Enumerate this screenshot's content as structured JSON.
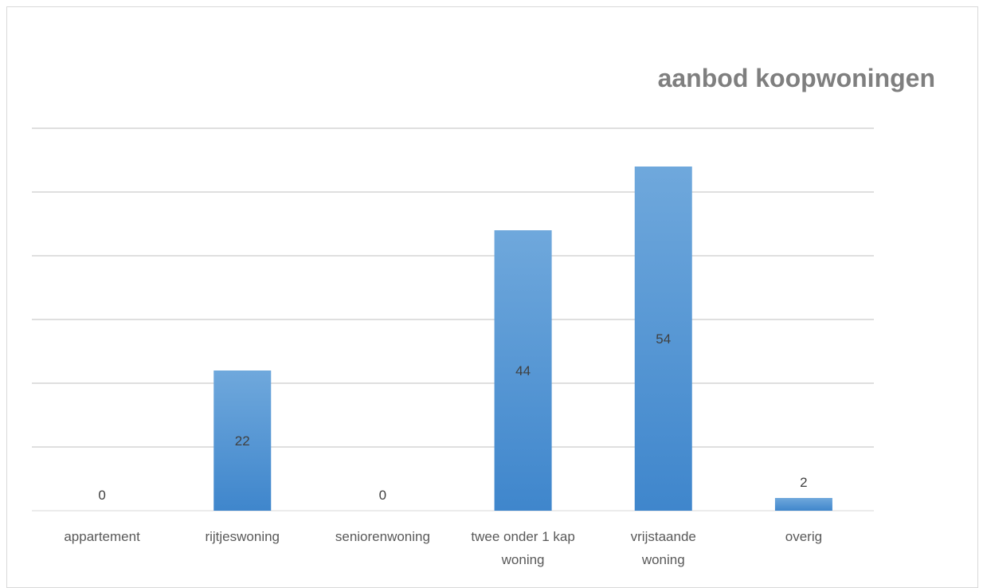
{
  "chart_data": {
    "type": "bar",
    "title": "aanbod koopwoningen",
    "categories": [
      [
        "appartement"
      ],
      [
        "rijtjeswoning"
      ],
      [
        "seniorenwoning"
      ],
      [
        "twee onder 1 kap",
        "woning"
      ],
      [
        "vrijstaande",
        "woning"
      ],
      [
        "overig"
      ]
    ],
    "values": [
      0,
      22,
      0,
      44,
      54,
      2
    ],
    "ylim": [
      0,
      60
    ],
    "gridlines": [
      10,
      20,
      30,
      40,
      50,
      60
    ],
    "grid": true,
    "legend": "none",
    "bar_color_top": "#6fa8dc",
    "bar_color_bottom": "#3f86cc",
    "title_color": "#7f7f7f"
  }
}
